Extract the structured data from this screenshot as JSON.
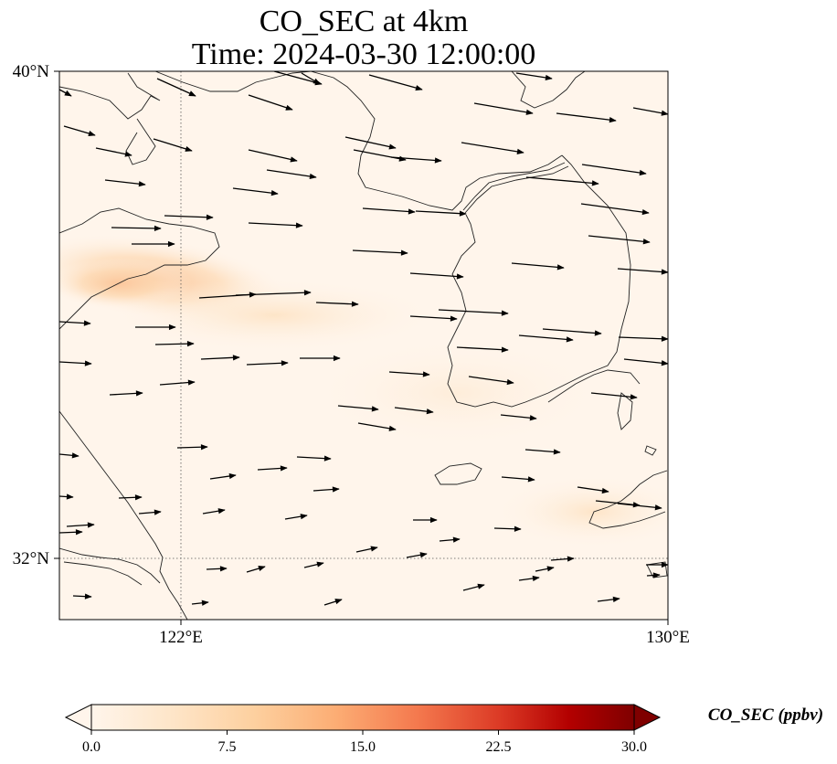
{
  "title": {
    "line1": "CO_SEC at 4km",
    "line2": "Time: 2024-03-30 12:00:00"
  },
  "map": {
    "lat_ticks": [
      "40°N",
      "32°N"
    ],
    "lon_ticks": [
      "122°E",
      "130°E"
    ],
    "extent": {
      "lon_min": 120,
      "lon_max": 130,
      "lat_min": 31,
      "lat_max": 40
    },
    "gridlines": {
      "lons": [
        122
      ],
      "lats": [
        32
      ],
      "style": "dotted"
    },
    "background_color": "#fff5eb",
    "coastline_color": "#222222",
    "wind_vectors_shown": true
  },
  "colorbar": {
    "label": "CO_SEC (ppbv)",
    "ticks": [
      "0.0",
      "7.5",
      "15.0",
      "22.5",
      "30.0"
    ],
    "min": 0,
    "max": 30,
    "colormap": "OrRd",
    "extend": "both"
  }
}
